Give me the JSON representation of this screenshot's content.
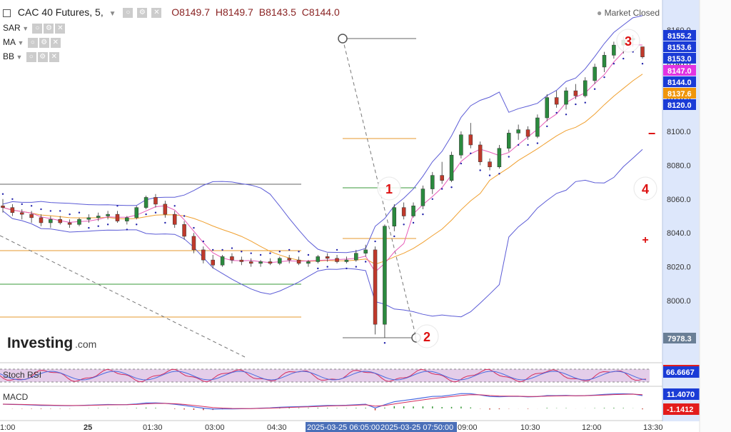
{
  "header": {
    "title": "CAC 40 Futures, 5,",
    "open": "O8149.7",
    "high": "H8149.7",
    "low": "B8143.5",
    "close": "C8144.0",
    "status": "Market Closed"
  },
  "indicators_top": [
    "SAR",
    "MA",
    "BB"
  ],
  "subpanels": {
    "stoch_label": "Stoch RSI",
    "macd_label": "MACD"
  },
  "logo": {
    "main": "Investing",
    "suffix": ".com"
  },
  "annotations": [
    "1",
    "2",
    "3",
    "4"
  ],
  "zoom": {
    "minus": "−",
    "plus": "+"
  },
  "colors": {
    "up": "#2b8a3e",
    "down": "#c0392b",
    "bb": "#5b5bd6",
    "ma_pink": "#e75bb8",
    "ma_orange": "#f0a030",
    "sar": "#2222aa",
    "fib_orange": "#e79a2c",
    "fib_green": "#3a9a3a",
    "badge_blue": "#1a3bd6",
    "badge_magenta": "#e233e2",
    "badge_orange": "#f0960c",
    "badge_red": "#e31c1c",
    "badge_gray": "#6a7f96",
    "axis_bg": "#dde7fb"
  },
  "chart_data": {
    "type": "candlestick",
    "y_axis": {
      "ticks": [
        "8160.0",
        "8140.0",
        "8120.0",
        "8100.0",
        "8080.0",
        "8060.0",
        "8040.0",
        "8020.0",
        "8000.0"
      ],
      "range": [
        7967,
        8170
      ]
    },
    "x_axis": {
      "ticks": [
        "1:00",
        "25",
        "01:30",
        "03:00",
        "04:30",
        "2025-03-25 06:05:00",
        "2025-03-25 07:50:00",
        "09:00",
        "10:30",
        "12:00",
        "13:30"
      ]
    },
    "price_badges": [
      {
        "value": "8155.2",
        "color": "badge_blue"
      },
      {
        "value": "8153.6",
        "color": "badge_blue"
      },
      {
        "value": "8153.0",
        "color": "badge_blue"
      },
      {
        "value": "8147.0",
        "color": "badge_magenta"
      },
      {
        "value": "8144.0",
        "color": "badge_blue"
      },
      {
        "value": "8137.6",
        "color": "badge_orange"
      },
      {
        "value": "8120.0",
        "color": "badge_blue"
      },
      {
        "value": "7978.3",
        "color": "badge_gray"
      }
    ],
    "stoch_rsi_value": "66.6667",
    "macd_values": [
      "11.4070",
      "-1.1412"
    ],
    "candles": [
      [
        8056,
        8060,
        8052,
        8055
      ],
      [
        8055,
        8057,
        8050,
        8052
      ],
      [
        8052,
        8054,
        8048,
        8051
      ],
      [
        8051,
        8053,
        8046,
        8049
      ],
      [
        8049,
        8051,
        8044,
        8046
      ],
      [
        8046,
        8050,
        8043,
        8048
      ],
      [
        8048,
        8050,
        8045,
        8046
      ],
      [
        8046,
        8048,
        8043,
        8045
      ],
      [
        8045,
        8049,
        8044,
        8048
      ],
      [
        8048,
        8051,
        8046,
        8049
      ],
      [
        8049,
        8052,
        8047,
        8050
      ],
      [
        8050,
        8053,
        8048,
        8051
      ],
      [
        8051,
        8053,
        8046,
        8047
      ],
      [
        8047,
        8050,
        8045,
        8049
      ],
      [
        8049,
        8056,
        8048,
        8055
      ],
      [
        8055,
        8062,
        8054,
        8061
      ],
      [
        8061,
        8063,
        8055,
        8057
      ],
      [
        8057,
        8059,
        8049,
        8051
      ],
      [
        8051,
        8053,
        8043,
        8045
      ],
      [
        8045,
        8047,
        8036,
        8038
      ],
      [
        8038,
        8040,
        8028,
        8030
      ],
      [
        8030,
        8032,
        8022,
        8024
      ],
      [
        8024,
        8027,
        8019,
        8021
      ],
      [
        8021,
        8027,
        8020,
        8026
      ],
      [
        8026,
        8028,
        8022,
        8024
      ],
      [
        8024,
        8026,
        8021,
        8023
      ],
      [
        8023,
        8025,
        8020,
        8022
      ],
      [
        8022,
        8024,
        8020,
        8023
      ],
      [
        8023,
        8025,
        8021,
        8022
      ],
      [
        8022,
        8026,
        8021,
        8025
      ],
      [
        8025,
        8027,
        8022,
        8024
      ],
      [
        8024,
        8026,
        8021,
        8022
      ],
      [
        8022,
        8024,
        8020,
        8023
      ],
      [
        8023,
        8027,
        8022,
        8026
      ],
      [
        8026,
        8028,
        8023,
        8025
      ],
      [
        8025,
        8027,
        8022,
        8023
      ],
      [
        8023,
        8026,
        8022,
        8024
      ],
      [
        8024,
        8030,
        8023,
        8028
      ],
      [
        8028,
        8033,
        8026,
        8030
      ],
      [
        8030,
        8032,
        7980,
        7986
      ],
      [
        7986,
        8045,
        7978,
        8044
      ],
      [
        8044,
        8057,
        8041,
        8055
      ],
      [
        8055,
        8058,
        8048,
        8050
      ],
      [
        8050,
        8058,
        8049,
        8056
      ],
      [
        8056,
        8068,
        8054,
        8066
      ],
      [
        8066,
        8076,
        8063,
        8074
      ],
      [
        8074,
        8082,
        8069,
        8071
      ],
      [
        8071,
        8088,
        8070,
        8086
      ],
      [
        8086,
        8100,
        8084,
        8098
      ],
      [
        8098,
        8105,
        8090,
        8092
      ],
      [
        8092,
        8094,
        8080,
        8082
      ],
      [
        8082,
        8084,
        8077,
        8079
      ],
      [
        8079,
        8092,
        8078,
        8090
      ],
      [
        8090,
        8101,
        8088,
        8099
      ],
      [
        8099,
        8104,
        8095,
        8101
      ],
      [
        8101,
        8103,
        8095,
        8097
      ],
      [
        8097,
        8110,
        8096,
        8108
      ],
      [
        8108,
        8122,
        8106,
        8120
      ],
      [
        8120,
        8124,
        8114,
        8116
      ],
      [
        8116,
        8126,
        8113,
        8124
      ],
      [
        8124,
        8128,
        8119,
        8121
      ],
      [
        8121,
        8132,
        8120,
        8130
      ],
      [
        8130,
        8140,
        8128,
        8138
      ],
      [
        8138,
        8147,
        8135,
        8145
      ],
      [
        8145,
        8153,
        8143,
        8151
      ],
      [
        8151,
        8156,
        8146,
        8154
      ],
      [
        8154,
        8157,
        8150,
        8155
      ],
      [
        8150,
        8150,
        8143,
        8144
      ]
    ]
  }
}
